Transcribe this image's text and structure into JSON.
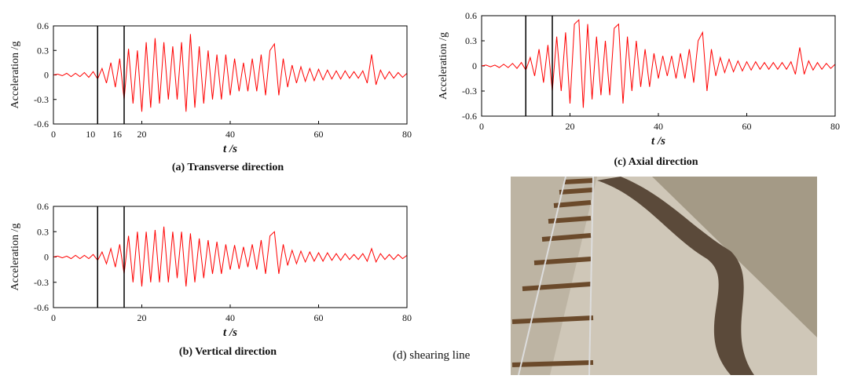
{
  "chart_data": [
    {
      "type": "line",
      "title": "(a) Transverse direction",
      "x_label": "t /s",
      "y_label": "Acceleration /g",
      "color": "#ff0000",
      "xlim": [
        0,
        80
      ],
      "ylim": [
        -0.6,
        0.6
      ],
      "xticks": [
        0,
        20,
        40,
        60,
        80
      ],
      "yticks": [
        0.6,
        0.3,
        0,
        -0.3,
        -0.6
      ],
      "vlines": [
        10,
        16
      ],
      "vline_labels": true,
      "x": [
        0,
        1,
        2,
        3,
        4,
        5,
        6,
        7,
        8,
        9,
        10,
        11,
        12,
        13,
        14,
        15,
        16,
        17,
        18,
        19,
        20,
        21,
        22,
        23,
        24,
        25,
        26,
        27,
        28,
        29,
        30,
        31,
        32,
        33,
        34,
        35,
        36,
        37,
        38,
        39,
        40,
        41,
        42,
        43,
        44,
        45,
        46,
        47,
        48,
        49,
        50,
        51,
        52,
        53,
        54,
        55,
        56,
        57,
        58,
        59,
        60,
        61,
        62,
        63,
        64,
        65,
        66,
        67,
        68,
        69,
        70,
        71,
        72,
        73,
        74,
        75,
        76,
        77,
        78,
        79,
        80
      ],
      "values": [
        0,
        0.01,
        -0.01,
        0.02,
        -0.02,
        0.02,
        -0.02,
        0.03,
        -0.03,
        0.04,
        -0.05,
        0.08,
        -0.1,
        0.15,
        -0.15,
        0.2,
        -0.3,
        0.32,
        -0.35,
        0.3,
        -0.45,
        0.4,
        -0.4,
        0.45,
        -0.35,
        0.4,
        -0.3,
        0.35,
        -0.3,
        0.4,
        -0.45,
        0.5,
        -0.4,
        0.35,
        -0.35,
        0.3,
        -0.3,
        0.25,
        -0.3,
        0.25,
        -0.25,
        0.2,
        -0.2,
        0.15,
        -0.2,
        0.2,
        -0.2,
        0.25,
        -0.25,
        0.3,
        0.38,
        -0.25,
        0.2,
        -0.15,
        0.12,
        -0.1,
        0.1,
        -0.08,
        0.08,
        -0.07,
        0.07,
        -0.06,
        0.06,
        -0.05,
        0.05,
        -0.05,
        0.05,
        -0.04,
        0.04,
        -0.04,
        0.05,
        -0.1,
        0.25,
        -0.12,
        0.06,
        -0.05,
        0.04,
        -0.04,
        0.03,
        -0.03,
        0.02
      ]
    },
    {
      "type": "line",
      "title": "(b) Vertical direction",
      "x_label": "t /s",
      "y_label": "Acceleration /g",
      "color": "#ff0000",
      "xlim": [
        0,
        80
      ],
      "ylim": [
        -0.6,
        0.6
      ],
      "xticks": [
        0,
        20,
        40,
        60,
        80
      ],
      "yticks": [
        0.6,
        0.3,
        0,
        -0.3,
        -0.6
      ],
      "vlines": [
        10,
        16
      ],
      "vline_labels": false,
      "x": [
        0,
        1,
        2,
        3,
        4,
        5,
        6,
        7,
        8,
        9,
        10,
        11,
        12,
        13,
        14,
        15,
        16,
        17,
        18,
        19,
        20,
        21,
        22,
        23,
        24,
        25,
        26,
        27,
        28,
        29,
        30,
        31,
        32,
        33,
        34,
        35,
        36,
        37,
        38,
        39,
        40,
        41,
        42,
        43,
        44,
        45,
        46,
        47,
        48,
        49,
        50,
        51,
        52,
        53,
        54,
        55,
        56,
        57,
        58,
        59,
        60,
        61,
        62,
        63,
        64,
        65,
        66,
        67,
        68,
        69,
        70,
        71,
        72,
        73,
        74,
        75,
        76,
        77,
        78,
        79,
        80
      ],
      "values": [
        0,
        0.01,
        -0.01,
        0.01,
        -0.02,
        0.02,
        -0.02,
        0.02,
        -0.02,
        0.03,
        -0.04,
        0.06,
        -0.08,
        0.1,
        -0.12,
        0.15,
        -0.2,
        0.25,
        -0.3,
        0.3,
        -0.35,
        0.3,
        -0.3,
        0.32,
        -0.3,
        0.36,
        -0.3,
        0.3,
        -0.25,
        0.3,
        -0.35,
        0.28,
        -0.3,
        0.22,
        -0.25,
        0.2,
        -0.2,
        0.18,
        -0.2,
        0.15,
        -0.15,
        0.14,
        -0.14,
        0.12,
        -0.12,
        0.15,
        -0.15,
        0.2,
        -0.2,
        0.25,
        0.3,
        -0.2,
        0.15,
        -0.1,
        0.08,
        -0.08,
        0.07,
        -0.06,
        0.06,
        -0.05,
        0.05,
        -0.05,
        0.05,
        -0.04,
        0.04,
        -0.04,
        0.04,
        -0.03,
        0.03,
        -0.03,
        0.04,
        -0.05,
        0.1,
        -0.06,
        0.04,
        -0.03,
        0.03,
        -0.03,
        0.03,
        -0.02,
        0.02
      ]
    },
    {
      "type": "line",
      "title": "(c) Axial direction",
      "x_label": "t /s",
      "y_label": "Acceleration /g",
      "color": "#ff0000",
      "xlim": [
        0,
        80
      ],
      "ylim": [
        -0.6,
        0.6
      ],
      "xticks": [
        0,
        20,
        40,
        60,
        80
      ],
      "yticks": [
        0.6,
        0.3,
        0,
        -0.3,
        -0.6
      ],
      "vlines": [
        10,
        16
      ],
      "vline_labels": false,
      "x": [
        0,
        1,
        2,
        3,
        4,
        5,
        6,
        7,
        8,
        9,
        10,
        11,
        12,
        13,
        14,
        15,
        16,
        17,
        18,
        19,
        20,
        21,
        22,
        23,
        24,
        25,
        26,
        27,
        28,
        29,
        30,
        31,
        32,
        33,
        34,
        35,
        36,
        37,
        38,
        39,
        40,
        41,
        42,
        43,
        44,
        45,
        46,
        47,
        48,
        49,
        50,
        51,
        52,
        53,
        54,
        55,
        56,
        57,
        58,
        59,
        60,
        61,
        62,
        63,
        64,
        65,
        66,
        67,
        68,
        69,
        70,
        71,
        72,
        73,
        74,
        75,
        76,
        77,
        78,
        79,
        80
      ],
      "values": [
        0,
        0.01,
        -0.01,
        0.01,
        -0.02,
        0.02,
        -0.02,
        0.03,
        -0.03,
        0.04,
        -0.05,
        0.1,
        -0.12,
        0.2,
        -0.2,
        0.25,
        -0.3,
        0.35,
        -0.3,
        0.4,
        -0.45,
        0.5,
        0.55,
        -0.5,
        0.5,
        -0.4,
        0.35,
        -0.35,
        0.3,
        -0.35,
        0.45,
        0.5,
        -0.45,
        0.35,
        -0.3,
        0.3,
        -0.25,
        0.2,
        -0.25,
        0.15,
        -0.15,
        0.12,
        -0.12,
        0.12,
        -0.15,
        0.15,
        -0.15,
        0.2,
        -0.2,
        0.3,
        0.4,
        -0.3,
        0.2,
        -0.12,
        0.1,
        -0.08,
        0.08,
        -0.07,
        0.06,
        -0.06,
        0.05,
        -0.05,
        0.05,
        -0.04,
        0.04,
        -0.04,
        0.04,
        -0.04,
        0.04,
        -0.04,
        0.05,
        -0.1,
        0.22,
        -0.1,
        0.06,
        -0.05,
        0.04,
        -0.04,
        0.03,
        -0.03,
        0.02
      ]
    }
  ],
  "photo": {
    "caption": "(d)  shearing line"
  }
}
